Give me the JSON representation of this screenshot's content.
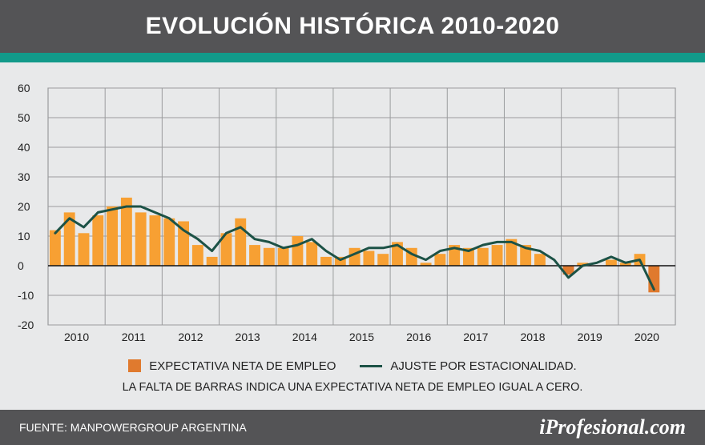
{
  "title": "EVOLUCIÓN HISTÓRICA 2010-2020",
  "legend": {
    "bars": "EXPECTATIVA NETA DE EMPLEO",
    "line": "AJUSTE POR ESTACIONALIDAD."
  },
  "note": "LA FALTA DE BARRAS INDICA UNA EXPECTATIVA NETA DE EMPLEO IGUAL A CERO.",
  "footer": {
    "source": "FUENTE: MANPOWERGROUP ARGENTINA",
    "logo": "iProfesional.com"
  },
  "colors": {
    "bar": "#f7a033",
    "bar_negative": "#e07a2e",
    "line": "#1c5246",
    "header": "#545456",
    "accent": "#129a8a"
  },
  "chart_data": {
    "type": "bar",
    "title": "EVOLUCIÓN HISTÓRICA 2010-2020",
    "xlabel": "",
    "ylabel": "",
    "ylim": [
      -20,
      60
    ],
    "yticks": [
      60,
      50,
      40,
      30,
      20,
      10,
      0,
      -10,
      -20
    ],
    "grid": true,
    "legend_position": "bottom",
    "year_labels": [
      "2010",
      "2011",
      "2012",
      "2013",
      "2014",
      "2015",
      "2016",
      "2017",
      "2018",
      "2019",
      "2020"
    ],
    "categories": [
      "2010 Q1",
      "2010 Q2",
      "2010 Q3",
      "2010 Q4",
      "2011 Q1",
      "2011 Q2",
      "2011 Q3",
      "2011 Q4",
      "2012 Q1",
      "2012 Q2",
      "2012 Q3",
      "2012 Q4",
      "2013 Q1",
      "2013 Q2",
      "2013 Q3",
      "2013 Q4",
      "2014 Q1",
      "2014 Q2",
      "2014 Q3",
      "2014 Q4",
      "2015 Q1",
      "2015 Q2",
      "2015 Q3",
      "2015 Q4",
      "2016 Q1",
      "2016 Q2",
      "2016 Q3",
      "2016 Q4",
      "2017 Q1",
      "2017 Q2",
      "2017 Q3",
      "2017 Q4",
      "2018 Q1",
      "2018 Q2",
      "2018 Q3",
      "2018 Q4",
      "2019 Q1",
      "2019 Q2",
      "2019 Q3",
      "2019 Q4",
      "2020 Q1",
      "2020 Q2",
      "2020 Q3",
      "2020 Q4"
    ],
    "series": [
      {
        "name": "EXPECTATIVA NETA DE EMPLEO",
        "type": "bar",
        "values": [
          12,
          18,
          11,
          17,
          20,
          23,
          18,
          17,
          16,
          15,
          7,
          3,
          11,
          16,
          7,
          6,
          6,
          10,
          8,
          3,
          3,
          6,
          5,
          4,
          8,
          6,
          1,
          4,
          7,
          6,
          6,
          7,
          9,
          7,
          4,
          0,
          -3,
          1,
          0,
          2,
          1,
          4,
          -9,
          null
        ]
      },
      {
        "name": "AJUSTE POR ESTACIONALIDAD.",
        "type": "line",
        "values": [
          11,
          16,
          13,
          18,
          19,
          20,
          20,
          18,
          16,
          12,
          9,
          5,
          11,
          13,
          9,
          8,
          6,
          7,
          9,
          5,
          2,
          4,
          6,
          6,
          7,
          4,
          2,
          5,
          6,
          5,
          7,
          8,
          8,
          6,
          5,
          2,
          -4,
          0,
          1,
          3,
          1,
          2,
          -8,
          null
        ]
      }
    ]
  }
}
